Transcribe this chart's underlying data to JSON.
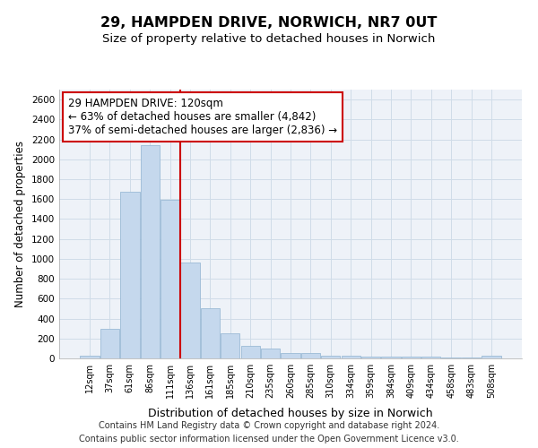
{
  "title1": "29, HAMPDEN DRIVE, NORWICH, NR7 0UT",
  "title2": "Size of property relative to detached houses in Norwich",
  "xlabel": "Distribution of detached houses by size in Norwich",
  "ylabel": "Number of detached properties",
  "annotation_line1": "29 HAMPDEN DRIVE: 120sqm",
  "annotation_line2": "← 63% of detached houses are smaller (4,842)",
  "annotation_line3": "37% of semi-detached houses are larger (2,836) →",
  "bar_color": "#c5d8ed",
  "bar_edge_color": "#9bbbd6",
  "vline_color": "#cc0000",
  "annotation_box_edge": "#cc0000",
  "grid_color": "#d0dce8",
  "bg_color": "#eef2f8",
  "categories": [
    "12sqm",
    "37sqm",
    "61sqm",
    "86sqm",
    "111sqm",
    "136sqm",
    "161sqm",
    "185sqm",
    "210sqm",
    "235sqm",
    "260sqm",
    "285sqm",
    "310sqm",
    "334sqm",
    "359sqm",
    "384sqm",
    "409sqm",
    "434sqm",
    "458sqm",
    "483sqm",
    "508sqm"
  ],
  "values": [
    25,
    295,
    1670,
    2140,
    1595,
    960,
    505,
    250,
    125,
    100,
    50,
    50,
    30,
    30,
    15,
    20,
    20,
    15,
    10,
    5,
    25
  ],
  "ylim": [
    0,
    2700
  ],
  "yticks": [
    0,
    200,
    400,
    600,
    800,
    1000,
    1200,
    1400,
    1600,
    1800,
    2000,
    2200,
    2400,
    2600
  ],
  "footer1": "Contains HM Land Registry data © Crown copyright and database right 2024.",
  "footer2": "Contains public sector information licensed under the Open Government Licence v3.0."
}
